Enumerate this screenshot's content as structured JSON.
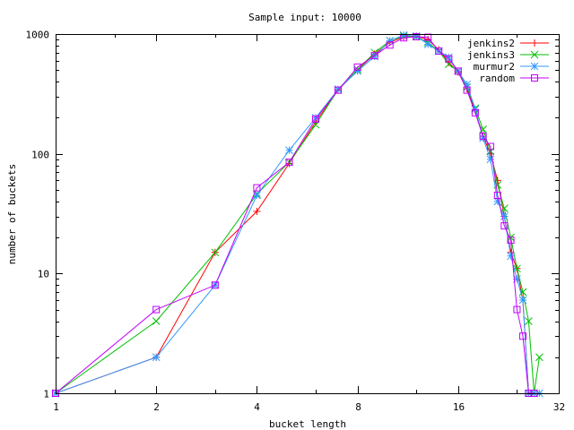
{
  "chart_data": {
    "type": "line",
    "title": "Sample input: 10000",
    "xlabel": "bucket length",
    "ylabel": "number of buckets",
    "xscale": "log2",
    "yscale": "log10",
    "xlim": [
      1,
      32
    ],
    "ylim": [
      1,
      1000
    ],
    "xticks": [
      1,
      2,
      4,
      8,
      16,
      32
    ],
    "xtick_labels": [
      "1",
      "2",
      "4",
      "8",
      "16",
      "32"
    ],
    "yticks": [
      1,
      10,
      100,
      1000
    ],
    "ytick_labels": [
      "1",
      "10",
      "100",
      "1000"
    ],
    "grid": false,
    "legend_position": "top-right",
    "series": [
      {
        "name": "jenkins2",
        "color": "#ff0000",
        "marker": "plus",
        "x": [
          1,
          2,
          3,
          4,
          5,
          6,
          7,
          8,
          9,
          10,
          11,
          12,
          13,
          14,
          15,
          16,
          17,
          18,
          19,
          20,
          21,
          22,
          23,
          24,
          25,
          26,
          27
        ],
        "y": [
          1,
          2,
          15,
          33,
          83,
          185,
          340,
          500,
          680,
          850,
          950,
          960,
          900,
          740,
          580,
          480,
          350,
          230,
          140,
          100,
          60,
          30,
          15,
          11,
          6,
          1,
          1
        ]
      },
      {
        "name": "jenkins3",
        "color": "#00c000",
        "marker": "cross",
        "x": [
          1,
          2,
          3,
          4,
          5,
          6,
          7,
          8,
          9,
          10,
          11,
          12,
          13,
          14,
          15,
          16,
          17,
          18,
          19,
          20,
          21,
          22,
          23,
          24,
          25,
          26,
          27,
          28
        ],
        "y": [
          1,
          4,
          15,
          46,
          85,
          175,
          345,
          505,
          700,
          880,
          960,
          950,
          850,
          720,
          560,
          490,
          360,
          240,
          160,
          105,
          55,
          35,
          20,
          11,
          7,
          4,
          1,
          2
        ]
      },
      {
        "name": "murmur2",
        "color": "#3399ff",
        "marker": "star",
        "x": [
          1,
          2,
          3,
          4,
          5,
          6,
          7,
          8,
          9,
          10,
          11,
          12,
          13,
          14,
          15,
          16,
          17,
          18,
          19,
          20,
          21,
          22,
          23,
          24,
          25,
          26,
          27,
          28
        ],
        "y": [
          1,
          2,
          8,
          45,
          107,
          200,
          345,
          490,
          650,
          880,
          980,
          960,
          820,
          720,
          640,
          490,
          380,
          235,
          135,
          90,
          40,
          30,
          14,
          9,
          6,
          1,
          1,
          1
        ]
      },
      {
        "name": "random",
        "color": "#c000ff",
        "marker": "square",
        "x": [
          1,
          2,
          3,
          4,
          5,
          6,
          7,
          8,
          9,
          10,
          11,
          12,
          13,
          14,
          15,
          16,
          17,
          18,
          19,
          20,
          21,
          22,
          23,
          24,
          25,
          26,
          27
        ],
        "y": [
          1,
          5,
          8,
          52,
          85,
          195,
          340,
          530,
          660,
          810,
          930,
          950,
          940,
          720,
          620,
          490,
          340,
          220,
          140,
          115,
          45,
          25,
          19,
          5,
          3,
          1,
          1
        ]
      }
    ]
  }
}
